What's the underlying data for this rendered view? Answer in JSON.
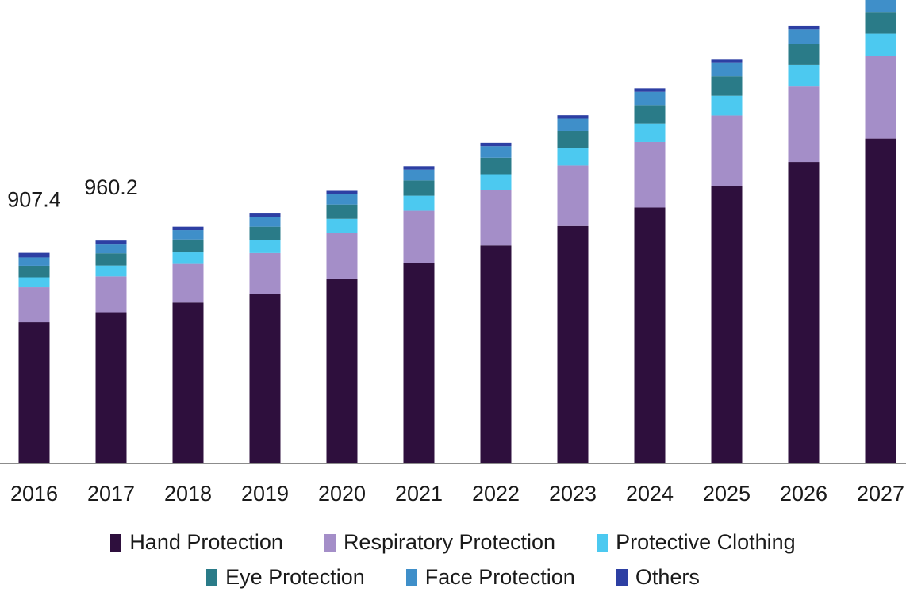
{
  "chart_data": {
    "type": "bar",
    "stacked": true,
    "title": "",
    "xlabel": "",
    "ylabel": "",
    "ylim": [
      0,
      2000
    ],
    "categories": [
      "2016",
      "2017",
      "2018",
      "2019",
      "2020",
      "2021",
      "2022",
      "2023",
      "2024",
      "2025",
      "2026",
      "2027"
    ],
    "series": [
      {
        "name": "Hand Protection",
        "color": "#2e0f3d",
        "values": [
          607,
          650,
          692,
          728,
          796,
          864,
          939,
          1023,
          1103,
          1196,
          1300,
          1401
        ]
      },
      {
        "name": "Respiratory Protection",
        "color": "#a48ec8",
        "values": [
          151,
          155,
          167,
          178,
          197,
          225,
          238,
          262,
          283,
          305,
          329,
          356
        ]
      },
      {
        "name": "Protective Clothing",
        "color": "#4cc9f0",
        "values": [
          43,
          47,
          50,
          55,
          61,
          65,
          70,
          74,
          80,
          85,
          90,
          97
        ]
      },
      {
        "name": "Eye Protection",
        "color": "#2a7b88",
        "values": [
          50,
          53,
          56,
          59,
          62,
          66,
          71,
          75,
          80,
          84,
          89,
          94
        ]
      },
      {
        "name": "Face Protection",
        "color": "#3f8fc9",
        "values": [
          36,
          38,
          40,
          42,
          44,
          47,
          50,
          53,
          57,
          60,
          64,
          68
        ]
      },
      {
        "name": "Others",
        "color": "#2d3fa3",
        "values": [
          20,
          17,
          15,
          15,
          15,
          15,
          15,
          15,
          15,
          15,
          15,
          15
        ]
      }
    ],
    "data_labels": [
      {
        "category": "2016",
        "text": "907.4"
      },
      {
        "category": "2017",
        "text": "960.2"
      }
    ],
    "legend": "bottom",
    "grid": false
  }
}
